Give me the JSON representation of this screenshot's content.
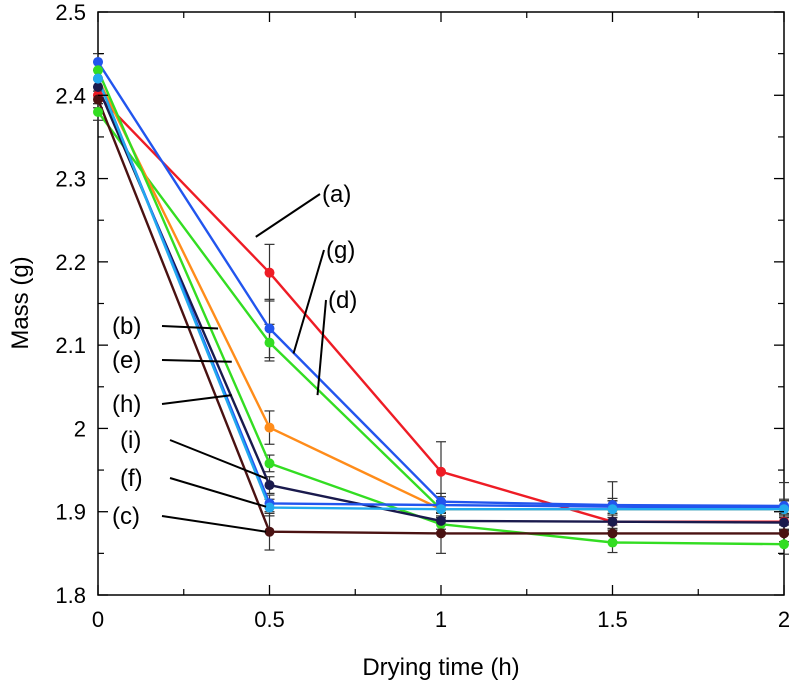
{
  "chart_data": {
    "type": "line",
    "title": "",
    "xlabel": "Drying time (h)",
    "ylabel": "Mass (g)",
    "xlim": [
      0,
      2
    ],
    "ylim": [
      1.8,
      2.5
    ],
    "grid": false,
    "xticks": [
      0,
      0.5,
      1,
      1.5,
      2
    ],
    "xtick_labels": [
      "0",
      "0.5",
      "1",
      "1.5",
      "2"
    ],
    "yticks": [
      1.8,
      1.9,
      2.0,
      2.1,
      2.2,
      2.3,
      2.4,
      2.5
    ],
    "ytick_labels": [
      "1.8",
      "1.9",
      "2",
      "2.1",
      "2.2",
      "2.3",
      "2.4",
      "2.5"
    ],
    "x": [
      0,
      0.5,
      1,
      1.5,
      2
    ],
    "series": [
      {
        "name": "(a)",
        "color": "#ee1c25",
        "values": [
          2.4,
          2.187,
          1.948,
          1.888,
          1.888
        ],
        "errors": [
          0.01,
          0.034,
          0.036,
          0.01,
          0.01
        ]
      },
      {
        "name": "(g)",
        "color": "#2255ee",
        "values": [
          2.44,
          2.12,
          1.912,
          1.908,
          1.907
        ],
        "errors": [
          0.01,
          0.035,
          0.01,
          0.028,
          0.028
        ]
      },
      {
        "name": "(d)",
        "color": "#33dd22",
        "values": [
          2.38,
          2.103,
          1.903,
          1.903,
          1.903
        ],
        "errors": [
          0.01,
          0.022,
          0.01,
          0.01,
          0.01
        ]
      },
      {
        "name": "(b)",
        "color": "#ff8c1a",
        "values": [
          2.42,
          2.001,
          1.903,
          1.903,
          1.903
        ],
        "errors": [
          0.01,
          0.02,
          0.01,
          0.01,
          0.01
        ]
      },
      {
        "name": "(e)",
        "color": "#33dd22",
        "values": [
          2.43,
          1.958,
          1.885,
          1.863,
          1.861
        ],
        "errors": [
          0.01,
          0.01,
          0.01,
          0.012,
          0.012
        ]
      },
      {
        "name": "(h)",
        "color": "#1a1a4d",
        "values": [
          2.41,
          1.932,
          1.889,
          1.888,
          1.887
        ],
        "errors": [
          0.01,
          0.01,
          0.01,
          0.01,
          0.01
        ]
      },
      {
        "name": "(i)",
        "color": "#2255ee",
        "values": [
          2.42,
          1.91,
          1.908,
          1.906,
          1.905
        ],
        "errors": [
          0.01,
          0.01,
          0.01,
          0.01,
          0.01
        ]
      },
      {
        "name": "(f)",
        "color": "#22aaee",
        "values": [
          2.42,
          1.905,
          1.903,
          1.903,
          1.903
        ],
        "errors": [
          0.01,
          0.01,
          0.01,
          0.01,
          0.01
        ]
      },
      {
        "name": "(c)",
        "color": "#4a1212",
        "values": [
          2.395,
          1.876,
          1.874,
          1.874,
          1.874
        ],
        "errors": [
          0.01,
          0.022,
          0.024,
          0.01,
          0.01
        ]
      }
    ],
    "annotations": [
      {
        "label": "(a)",
        "target_x": 0.46,
        "target_y": 2.23
      },
      {
        "label": "(g)",
        "target_x": 0.57,
        "target_y": 2.09
      },
      {
        "label": "(d)",
        "target_x": 0.64,
        "target_y": 2.04
      },
      {
        "label": "(b)",
        "target_x": 0.35,
        "target_y": 2.12
      },
      {
        "label": "(e)",
        "target_x": 0.39,
        "target_y": 2.08
      },
      {
        "label": "(h)",
        "target_x": 0.39,
        "target_y": 2.04
      },
      {
        "label": "(i)",
        "target_x": 0.49,
        "target_y": 1.94
      },
      {
        "label": "(f)",
        "target_x": 0.49,
        "target_y": 1.906
      },
      {
        "label": "(c)",
        "target_x": 0.49,
        "target_y": 1.876
      }
    ]
  }
}
